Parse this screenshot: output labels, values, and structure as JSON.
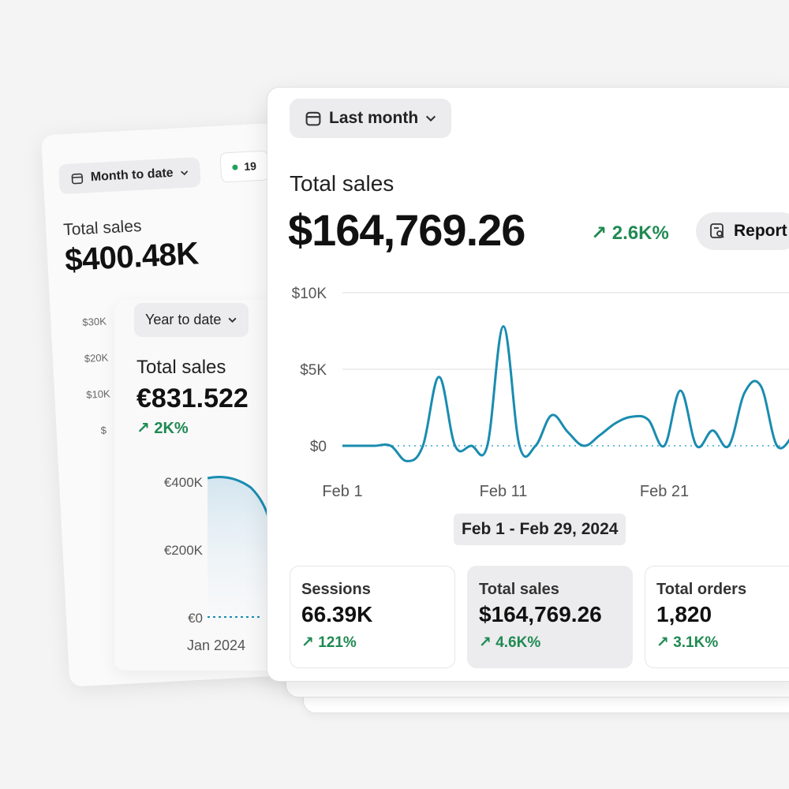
{
  "back_card": {
    "filter_label": "Month to date",
    "chip_label": "19",
    "title": "Total sales",
    "value": "$400.48K",
    "ticks": [
      "$30K",
      "$20K",
      "$10K",
      "$"
    ]
  },
  "middle_card": {
    "filter_label": "Year to date",
    "title": "Total sales",
    "value": "€831.522",
    "change": "2K%",
    "ticks": [
      "€400K",
      "€200K",
      "€0"
    ],
    "x_label": "Jan 2024"
  },
  "front_card": {
    "filter_label": "Last month",
    "title": "Total sales",
    "value": "$164,769.26",
    "change": "2.6K%",
    "report_label": "Report",
    "date_range": "Feb 1 - Feb 29, 2024",
    "metrics": [
      {
        "label": "Sessions",
        "value": "66.39K",
        "change": "121%"
      },
      {
        "label": "Total sales",
        "value": "$164,769.26",
        "change": "4.6K%"
      },
      {
        "label": "Total orders",
        "value": "1,820",
        "change": "3.1K%"
      }
    ]
  },
  "colors": {
    "accent": "#1a8cb0",
    "positive": "#1f8a52",
    "pill_bg": "#ececee"
  },
  "chart_data": {
    "type": "line",
    "title": "",
    "xlabel": "",
    "ylabel": "",
    "ylim": [
      0,
      10000
    ],
    "y_ticks": [
      "$10K",
      "$5K",
      "$0"
    ],
    "x_ticks": [
      "Feb 1",
      "Feb 11",
      "Feb 21"
    ],
    "x": [
      1,
      2,
      3,
      4,
      5,
      6,
      7,
      8,
      9,
      10,
      11,
      12,
      13,
      14,
      15,
      16,
      17,
      18,
      19,
      20,
      21,
      22,
      23,
      24,
      25,
      26,
      27,
      28,
      29
    ],
    "series": [
      {
        "values": [
          0,
          0,
          0,
          0,
          -1000,
          0,
          4500,
          0,
          0,
          0,
          7800,
          0,
          0,
          2000,
          900,
          0,
          700,
          1500,
          1900,
          1700,
          0,
          3600,
          0,
          1000,
          0,
          3500,
          3900,
          0,
          700
        ]
      }
    ],
    "grid": true
  }
}
